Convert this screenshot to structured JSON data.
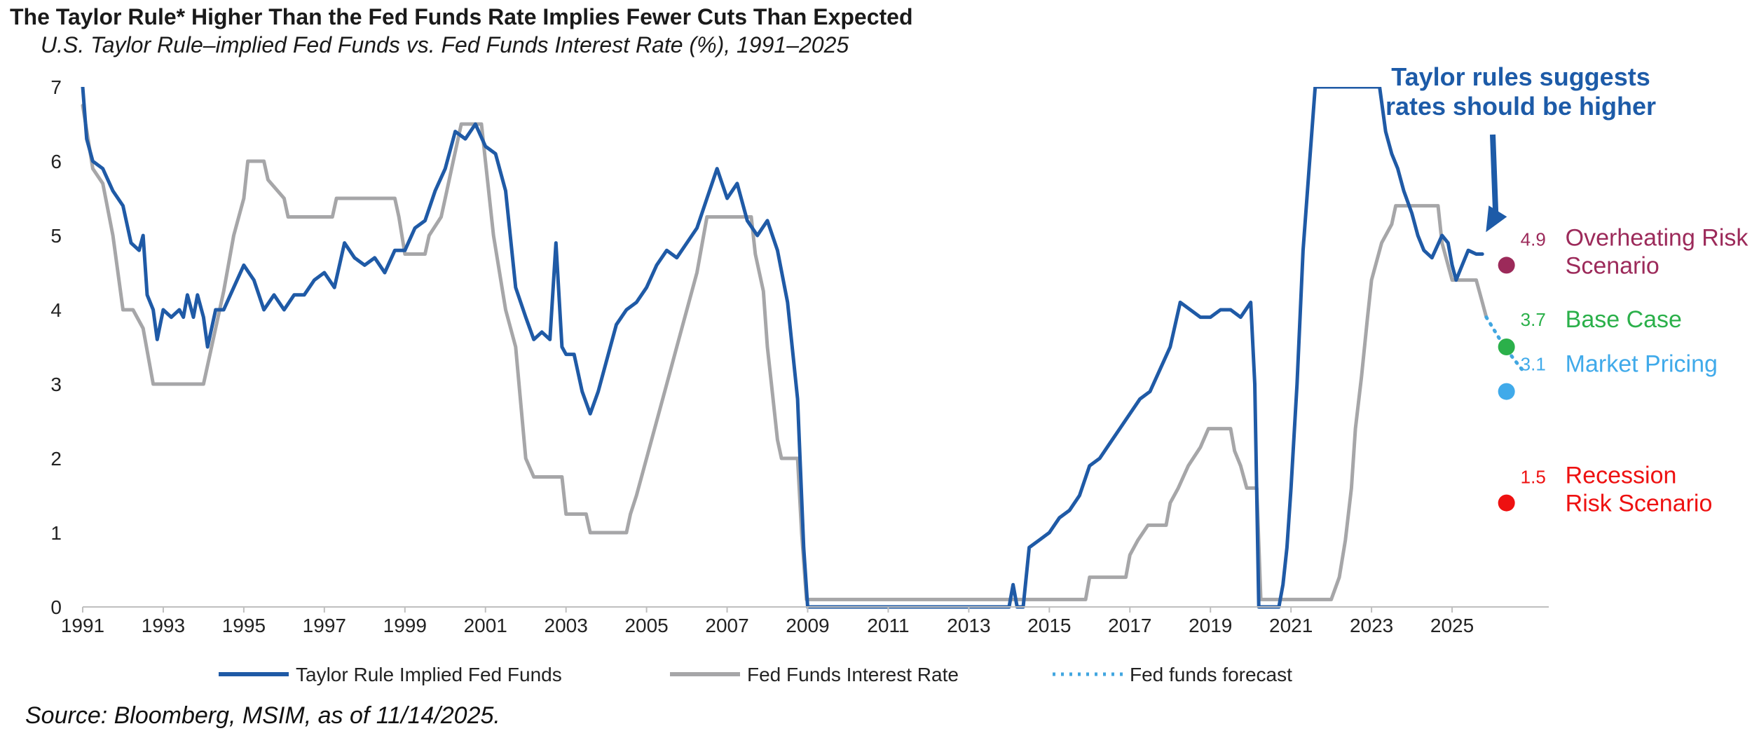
{
  "title": "The Taylor Rule* Higher Than the Fed Funds Rate Implies Fewer Cuts Than Expected",
  "subtitle": "U.S. Taylor Rule–implied Fed Funds vs. Fed Funds Interest Rate (%), 1991–2025",
  "source": "Source: Bloomberg, MSIM, as of 11/14/2025.",
  "colors": {
    "taylor": "#1f5aa6",
    "fedfunds": "#a6a6a8",
    "forecast": "#41a6e0",
    "overheating": "#9c2a5a",
    "base": "#2bb04a",
    "market": "#40aaea",
    "recession": "#ee1111",
    "annotation": "#1d5ba8"
  },
  "chart_data": {
    "type": "line",
    "title": "",
    "xlabel": "",
    "ylabel": "",
    "xlim": [
      1991,
      2027.4
    ],
    "ylim": [
      0,
      7
    ],
    "xticks": [
      1991,
      1993,
      1995,
      1997,
      1999,
      2001,
      2003,
      2005,
      2007,
      2009,
      2011,
      2013,
      2015,
      2017,
      2019,
      2021,
      2023,
      2025
    ],
    "yticks": [
      0,
      1,
      2,
      3,
      4,
      5,
      6,
      7
    ],
    "legend_position": "bottom",
    "series": [
      {
        "name": "Taylor Rule Implied Fed Funds",
        "style": "solid",
        "color": "#1f5aa6",
        "points": [
          [
            1991.0,
            7.0
          ],
          [
            1991.1,
            6.3
          ],
          [
            1991.25,
            6.0
          ],
          [
            1991.5,
            5.9
          ],
          [
            1991.75,
            5.6
          ],
          [
            1992.0,
            5.4
          ],
          [
            1992.2,
            4.9
          ],
          [
            1992.4,
            4.8
          ],
          [
            1992.5,
            5.0
          ],
          [
            1992.6,
            4.2
          ],
          [
            1992.75,
            4.0
          ],
          [
            1992.85,
            3.6
          ],
          [
            1993.0,
            4.0
          ],
          [
            1993.2,
            3.9
          ],
          [
            1993.4,
            4.0
          ],
          [
            1993.5,
            3.9
          ],
          [
            1993.6,
            4.2
          ],
          [
            1993.75,
            3.9
          ],
          [
            1993.85,
            4.2
          ],
          [
            1994.0,
            3.9
          ],
          [
            1994.1,
            3.5
          ],
          [
            1994.3,
            4.0
          ],
          [
            1994.5,
            4.0
          ],
          [
            1994.75,
            4.3
          ],
          [
            1995.0,
            4.6
          ],
          [
            1995.25,
            4.4
          ],
          [
            1995.5,
            4.0
          ],
          [
            1995.75,
            4.2
          ],
          [
            1996.0,
            4.0
          ],
          [
            1996.25,
            4.2
          ],
          [
            1996.5,
            4.2
          ],
          [
            1996.75,
            4.4
          ],
          [
            1997.0,
            4.5
          ],
          [
            1997.25,
            4.3
          ],
          [
            1997.5,
            4.9
          ],
          [
            1997.75,
            4.7
          ],
          [
            1998.0,
            4.6
          ],
          [
            1998.25,
            4.7
          ],
          [
            1998.5,
            4.5
          ],
          [
            1998.75,
            4.8
          ],
          [
            1999.0,
            4.8
          ],
          [
            1999.25,
            5.1
          ],
          [
            1999.5,
            5.2
          ],
          [
            1999.75,
            5.6
          ],
          [
            2000.0,
            5.9
          ],
          [
            2000.25,
            6.4
          ],
          [
            2000.5,
            6.3
          ],
          [
            2000.75,
            6.5
          ],
          [
            2001.0,
            6.2
          ],
          [
            2001.25,
            6.1
          ],
          [
            2001.5,
            5.6
          ],
          [
            2001.75,
            4.3
          ],
          [
            2002.0,
            3.9
          ],
          [
            2002.2,
            3.6
          ],
          [
            2002.4,
            3.7
          ],
          [
            2002.6,
            3.6
          ],
          [
            2002.75,
            4.9
          ],
          [
            2002.9,
            3.5
          ],
          [
            2003.0,
            3.4
          ],
          [
            2003.2,
            3.4
          ],
          [
            2003.4,
            2.9
          ],
          [
            2003.6,
            2.6
          ],
          [
            2003.8,
            2.9
          ],
          [
            2004.0,
            3.3
          ],
          [
            2004.25,
            3.8
          ],
          [
            2004.5,
            4.0
          ],
          [
            2004.75,
            4.1
          ],
          [
            2005.0,
            4.3
          ],
          [
            2005.25,
            4.6
          ],
          [
            2005.5,
            4.8
          ],
          [
            2005.75,
            4.7
          ],
          [
            2006.0,
            4.9
          ],
          [
            2006.25,
            5.1
          ],
          [
            2006.5,
            5.5
          ],
          [
            2006.75,
            5.9
          ],
          [
            2007.0,
            5.5
          ],
          [
            2007.25,
            5.7
          ],
          [
            2007.5,
            5.2
          ],
          [
            2007.75,
            5.0
          ],
          [
            2008.0,
            5.2
          ],
          [
            2008.25,
            4.8
          ],
          [
            2008.5,
            4.1
          ],
          [
            2008.75,
            2.8
          ],
          [
            2008.9,
            0.8
          ],
          [
            2009.0,
            0.0
          ],
          [
            2014.0,
            0.0
          ],
          [
            2014.1,
            0.3
          ],
          [
            2014.2,
            0.0
          ],
          [
            2014.35,
            0.0
          ],
          [
            2014.5,
            0.8
          ],
          [
            2014.75,
            0.9
          ],
          [
            2015.0,
            1.0
          ],
          [
            2015.25,
            1.2
          ],
          [
            2015.5,
            1.3
          ],
          [
            2015.75,
            1.5
          ],
          [
            2016.0,
            1.9
          ],
          [
            2016.25,
            2.0
          ],
          [
            2016.5,
            2.2
          ],
          [
            2016.75,
            2.4
          ],
          [
            2017.0,
            2.6
          ],
          [
            2017.25,
            2.8
          ],
          [
            2017.5,
            2.9
          ],
          [
            2017.75,
            3.2
          ],
          [
            2018.0,
            3.5
          ],
          [
            2018.25,
            4.1
          ],
          [
            2018.5,
            4.0
          ],
          [
            2018.75,
            3.9
          ],
          [
            2019.0,
            3.9
          ],
          [
            2019.25,
            4.0
          ],
          [
            2019.5,
            4.0
          ],
          [
            2019.75,
            3.9
          ],
          [
            2020.0,
            4.1
          ],
          [
            2020.1,
            3.0
          ],
          [
            2020.2,
            0.0
          ],
          [
            2020.7,
            0.0
          ],
          [
            2020.8,
            0.3
          ],
          [
            2020.9,
            0.8
          ],
          [
            2021.0,
            1.6
          ],
          [
            2021.15,
            3.0
          ],
          [
            2021.3,
            4.8
          ],
          [
            2021.45,
            5.9
          ],
          [
            2021.6,
            7.0
          ],
          [
            2023.2,
            7.0
          ],
          [
            2023.35,
            6.4
          ],
          [
            2023.5,
            6.1
          ],
          [
            2023.65,
            5.9
          ],
          [
            2023.8,
            5.6
          ],
          [
            2024.0,
            5.3
          ],
          [
            2024.15,
            5.0
          ],
          [
            2024.3,
            4.8
          ],
          [
            2024.5,
            4.7
          ],
          [
            2024.75,
            5.0
          ],
          [
            2024.9,
            4.9
          ],
          [
            2025.0,
            4.6
          ],
          [
            2025.1,
            4.4
          ],
          [
            2025.25,
            4.6
          ],
          [
            2025.4,
            4.8
          ],
          [
            2025.6,
            4.75
          ],
          [
            2025.75,
            4.75
          ]
        ]
      },
      {
        "name": "Fed Funds Interest Rate",
        "style": "solid",
        "color": "#a6a6a8",
        "points": [
          [
            1991.0,
            6.75
          ],
          [
            1991.25,
            5.9
          ],
          [
            1991.5,
            5.7
          ],
          [
            1991.75,
            5.0
          ],
          [
            1992.0,
            4.0
          ],
          [
            1992.25,
            4.0
          ],
          [
            1992.5,
            3.75
          ],
          [
            1992.75,
            3.0
          ],
          [
            1993.0,
            3.0
          ],
          [
            1994.0,
            3.0
          ],
          [
            1994.2,
            3.5
          ],
          [
            1994.5,
            4.25
          ],
          [
            1994.75,
            5.0
          ],
          [
            1995.0,
            5.5
          ],
          [
            1995.1,
            6.0
          ],
          [
            1995.5,
            6.0
          ],
          [
            1995.6,
            5.75
          ],
          [
            1996.0,
            5.5
          ],
          [
            1996.1,
            5.25
          ],
          [
            1997.2,
            5.25
          ],
          [
            1997.3,
            5.5
          ],
          [
            1998.75,
            5.5
          ],
          [
            1998.85,
            5.25
          ],
          [
            1999.0,
            4.75
          ],
          [
            1999.5,
            4.75
          ],
          [
            1999.6,
            5.0
          ],
          [
            1999.9,
            5.25
          ],
          [
            2000.0,
            5.5
          ],
          [
            2000.2,
            6.0
          ],
          [
            2000.4,
            6.5
          ],
          [
            2000.9,
            6.5
          ],
          [
            2001.0,
            6.0
          ],
          [
            2001.2,
            5.0
          ],
          [
            2001.5,
            4.0
          ],
          [
            2001.75,
            3.5
          ],
          [
            2002.0,
            2.0
          ],
          [
            2002.2,
            1.75
          ],
          [
            2002.9,
            1.75
          ],
          [
            2003.0,
            1.25
          ],
          [
            2003.5,
            1.25
          ],
          [
            2003.6,
            1.0
          ],
          [
            2004.5,
            1.0
          ],
          [
            2004.6,
            1.25
          ],
          [
            2004.75,
            1.5
          ],
          [
            2005.0,
            2.0
          ],
          [
            2005.25,
            2.5
          ],
          [
            2005.5,
            3.0
          ],
          [
            2005.75,
            3.5
          ],
          [
            2006.0,
            4.0
          ],
          [
            2006.25,
            4.5
          ],
          [
            2006.5,
            5.25
          ],
          [
            2007.6,
            5.25
          ],
          [
            2007.7,
            4.75
          ],
          [
            2007.9,
            4.25
          ],
          [
            2008.0,
            3.5
          ],
          [
            2008.1,
            3.0
          ],
          [
            2008.25,
            2.25
          ],
          [
            2008.35,
            2.0
          ],
          [
            2008.75,
            2.0
          ],
          [
            2008.85,
            1.0
          ],
          [
            2008.97,
            0.1
          ],
          [
            2015.9,
            0.1
          ],
          [
            2016.0,
            0.4
          ],
          [
            2016.9,
            0.4
          ],
          [
            2017.0,
            0.7
          ],
          [
            2017.2,
            0.9
          ],
          [
            2017.45,
            1.1
          ],
          [
            2017.9,
            1.1
          ],
          [
            2018.0,
            1.4
          ],
          [
            2018.2,
            1.6
          ],
          [
            2018.45,
            1.9
          ],
          [
            2018.75,
            2.15
          ],
          [
            2018.95,
            2.4
          ],
          [
            2019.5,
            2.4
          ],
          [
            2019.6,
            2.1
          ],
          [
            2019.75,
            1.9
          ],
          [
            2019.9,
            1.6
          ],
          [
            2020.15,
            1.6
          ],
          [
            2020.25,
            0.1
          ],
          [
            2022.0,
            0.1
          ],
          [
            2022.2,
            0.4
          ],
          [
            2022.35,
            0.9
          ],
          [
            2022.5,
            1.6
          ],
          [
            2022.6,
            2.4
          ],
          [
            2022.75,
            3.1
          ],
          [
            2022.9,
            3.9
          ],
          [
            2023.0,
            4.4
          ],
          [
            2023.25,
            4.9
          ],
          [
            2023.5,
            5.15
          ],
          [
            2023.6,
            5.4
          ],
          [
            2024.65,
            5.4
          ],
          [
            2024.75,
            4.9
          ],
          [
            2024.9,
            4.6
          ],
          [
            2025.0,
            4.4
          ],
          [
            2025.6,
            4.4
          ],
          [
            2025.75,
            4.1
          ],
          [
            2025.85,
            3.9
          ]
        ]
      },
      {
        "name": "Fed funds forecast",
        "style": "dotted",
        "color": "#41a6e0",
        "points": [
          [
            2025.85,
            3.9
          ],
          [
            2026.3,
            3.5
          ],
          [
            2026.8,
            3.15
          ]
        ]
      }
    ],
    "annotations": [
      {
        "text_lines": [
          "Taylor rules suggests",
          "rates should be higher"
        ],
        "arrow_to": [
          2025.7,
          4.95
        ]
      }
    ],
    "scenarios": [
      {
        "value": 4.9,
        "label": "4.9",
        "name_lines": [
          "Overheating Risk",
          "Scenario"
        ],
        "plot_y": 4.6,
        "x": 2026.35,
        "color": "#9c2a5a"
      },
      {
        "value": 3.7,
        "label": "3.7",
        "name_lines": [
          "Base Case"
        ],
        "plot_y": 3.5,
        "x": 2026.35,
        "color": "#2bb04a"
      },
      {
        "value": 3.1,
        "label": "3.1",
        "name_lines": [
          "Market Pricing"
        ],
        "plot_y": 2.9,
        "x": 2026.35,
        "color": "#40aaea"
      },
      {
        "value": 1.5,
        "label": "1.5",
        "name_lines": [
          "Recession",
          "Risk Scenario"
        ],
        "plot_y": 1.4,
        "x": 2026.35,
        "color": "#ee1111"
      }
    ]
  }
}
